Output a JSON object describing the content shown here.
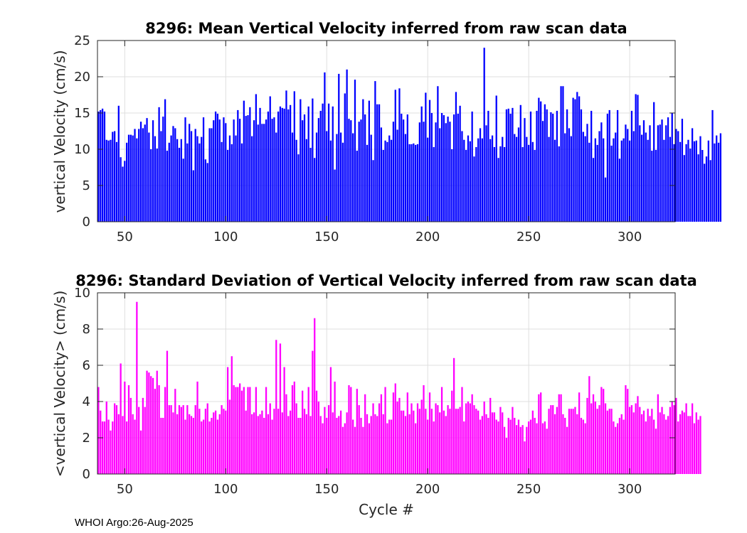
{
  "chart_data": [
    {
      "type": "bar",
      "title": "8296: Mean Vertical Velocity inferred from raw scan data",
      "xlabel": "",
      "ylabel": "vertical Velocity (cm/s)",
      "x_start": 37,
      "xlim": [
        36.5,
        322.5
      ],
      "ylim": [
        0,
        25
      ],
      "yticks": [
        0,
        5,
        10,
        15,
        20,
        25
      ],
      "xticks": [
        50,
        100,
        150,
        200,
        250,
        300
      ],
      "grid": true,
      "color": "#0000ff",
      "values": [
        15.2,
        15.4,
        15.6,
        15.2,
        11.3,
        11.2,
        11.3,
        12.4,
        12.5,
        11.0,
        16.0,
        8.9,
        7.6,
        8.4,
        10.9,
        12.0,
        12.0,
        11.9,
        12.8,
        11.5,
        12.8,
        13.8,
        12.9,
        13.4,
        14.3,
        12.3,
        10.0,
        14.0,
        11.8,
        10.1,
        15.8,
        12.5,
        14.5,
        16.9,
        9.8,
        10.9,
        11.9,
        13.2,
        12.9,
        11.4,
        10.2,
        11.4,
        8.7,
        14.4,
        10.8,
        13.5,
        12.5,
        7.1,
        12.8,
        11.8,
        10.8,
        11.7,
        14.4,
        8.6,
        8.1,
        12.9,
        12.9,
        14.0,
        15.2,
        14.9,
        14.1,
        11.0,
        14.4,
        13.6,
        9.9,
        11.9,
        10.7,
        14.1,
        11.9,
        15.4,
        14.2,
        10.8,
        16.7,
        14.6,
        14.7,
        15.8,
        11.8,
        14.0,
        17.6,
        13.4,
        15.7,
        13.5,
        13.5,
        14.1,
        15.2,
        17.3,
        14.2,
        14.4,
        12.3,
        15.2,
        15.9,
        15.7,
        15.6,
        18.1,
        15.5,
        16.1,
        12.3,
        18.0,
        11.3,
        9.3,
        16.9,
        14.0,
        14.8,
        11.4,
        15.9,
        10.2,
        17.0,
        8.8,
        12.3,
        14.3,
        15.3,
        16.3,
        20.6,
        12.5,
        16.3,
        11.2,
        15.9,
        7.2,
        12.1,
        20.4,
        12.3,
        10.9,
        17.7,
        21.0,
        14.2,
        14.0,
        12.2,
        19.6,
        9.8,
        13.8,
        14.1,
        16.9,
        14.8,
        10.6,
        16.7,
        12.0,
        8.5,
        19.4,
        16.2,
        16.2,
        13.0,
        9.9,
        11.2,
        11.0,
        11.9,
        11.3,
        13.8,
        18.2,
        12.7,
        18.4,
        14.9,
        14.1,
        12.1,
        14.8,
        10.7,
        10.7,
        10.8,
        10.6,
        10.7,
        13.7,
        15.9,
        13.8,
        17.8,
        11.6,
        16.8,
        15.0,
        10.3,
        13.7,
        18.7,
        12.9,
        15.0,
        14.7,
        13.6,
        14.5,
        13.8,
        10.0,
        14.8,
        17.9,
        14.9,
        16.0,
        12.5,
        11.3,
        9.9,
        11.9,
        11.1,
        15.2,
        9.0,
        10.3,
        11.5,
        12.9,
        11.5,
        24.0,
        13.3,
        15.3,
        11.4,
        11.9,
        10.3,
        17.4,
        8.8,
        10.4,
        11.7,
        10.3,
        15.5,
        15.6,
        14.9,
        15.7,
        12.1,
        11.7,
        13.0,
        16.1,
        10.3,
        14.3,
        11.7,
        10.6,
        15.2,
        11.0,
        9.9,
        15.3,
        17.1,
        16.6,
        13.9,
        16.2,
        15.5,
        11.7,
        15.1,
        14.9,
        11.3,
        15.3,
        10.4,
        18.7,
        18.7,
        12.2,
        15.5,
        12.9,
        11.8,
        17.1,
        16.9,
        17.9,
        17.3,
        15.5,
        12.4,
        11.8,
        13.5,
        10.9,
        15.3,
        8.8,
        11.5,
        10.6,
        12.5,
        13.7,
        11.5,
        6.1,
        14.9,
        15.4,
        10.5,
        11.5,
        12.3,
        15.4,
        8.7,
        11.2,
        11.5,
        13.4,
        12.8,
        11.2,
        15.3,
        12.5,
        17.6,
        17.5,
        13.3,
        12.0,
        14.0,
        12.3,
        11.3,
        13.3,
        9.8,
        16.5,
        9.9,
        13.3,
        13.4,
        14.1,
        11.3,
        13.3,
        14.4,
        11.7,
        15.0,
        10.7,
        12.8,
        12.5,
        11.0,
        14.2,
        9.2,
        10.7,
        11.3,
        10.1,
        12.9,
        11.1,
        11.2,
        9.3,
        11.8,
        9.9,
        8.0,
        9.0,
        11.2,
        8.5,
        15.4,
        10.8,
        11.9,
        10.9,
        12.2
      ]
    },
    {
      "type": "bar",
      "title": "8296: Standard Deviation of Vertical Velocity inferred from raw scan data",
      "xlabel": "Cycle #",
      "ylabel": "<vertical Velocity> (cm/s)",
      "x_start": 37,
      "xlim": [
        36.5,
        322.5
      ],
      "ylim": [
        0,
        10
      ],
      "yticks": [
        0,
        2,
        4,
        6,
        8,
        10
      ],
      "xticks": [
        50,
        100,
        150,
        200,
        250,
        300
      ],
      "grid": true,
      "color": "#ff00ff",
      "values": [
        4.8,
        3.5,
        2.9,
        2.9,
        4.0,
        3.0,
        2.4,
        2.9,
        3.9,
        3.8,
        3.3,
        6.1,
        3.2,
        5.1,
        2.9,
        4.9,
        4.2,
        3.3,
        3.0,
        9.5,
        3.7,
        2.4,
        4.2,
        3.7,
        5.7,
        5.6,
        5.4,
        5.3,
        4.7,
        5.7,
        4.9,
        3.1,
        3.1,
        4.8,
        6.8,
        3.8,
        3.8,
        3.4,
        4.7,
        3.3,
        3.8,
        3.7,
        3.8,
        3.0,
        3.8,
        3.3,
        3.2,
        3.1,
        3.8,
        5.1,
        3.6,
        2.9,
        3.0,
        3.6,
        3.9,
        2.9,
        3.1,
        3.4,
        3.5,
        3.0,
        3.3,
        3.8,
        3.6,
        3.5,
        5.9,
        4.1,
        6.5,
        4.9,
        4.8,
        4.8,
        5.0,
        4.6,
        4.8,
        3.5,
        4.8,
        4.8,
        3.3,
        3.4,
        4.8,
        3.2,
        3.3,
        3.5,
        3.1,
        4.8,
        3.3,
        3.9,
        3.0,
        3.6,
        7.4,
        3.6,
        7.2,
        3.4,
        5.9,
        4.4,
        3.2,
        3.5,
        4.9,
        5.1,
        3.9,
        3.1,
        3.1,
        4.6,
        3.6,
        3.3,
        4.8,
        3.2,
        6.8,
        8.6,
        4.6,
        4.0,
        3.2,
        2.8,
        3.7,
        3.1,
        3.8,
        5.9,
        3.4,
        5.1,
        3.1,
        3.2,
        3.5,
        2.6,
        2.8,
        3.4,
        4.9,
        4.8,
        3.0,
        2.6,
        4.7,
        3.8,
        3.1,
        2.6,
        4.4,
        3.3,
        2.8,
        3.2,
        3.9,
        3.3,
        3.2,
        3.9,
        4.4,
        3.3,
        4.8,
        2.8,
        3.0,
        3.0,
        4.5,
        5.0,
        4.0,
        4.2,
        3.5,
        3.5,
        3.2,
        4.5,
        3.3,
        3.9,
        3.5,
        2.8,
        3.9,
        3.6,
        4.1,
        4.9,
        3.6,
        3.0,
        4.5,
        3.6,
        2.9,
        3.9,
        3.8,
        3.4,
        4.8,
        3.5,
        3.2,
        3.8,
        3.6,
        4.6,
        6.4,
        3.6,
        3.6,
        3.7,
        4.8,
        2.9,
        3.9,
        4.0,
        3.9,
        4.4,
        3.8,
        3.6,
        3.5,
        3.0,
        3.2,
        4.0,
        3.3,
        3.1,
        4.2,
        3.4,
        3.4,
        3.0,
        2.9,
        3.7,
        3.4,
        2.6,
        2.0,
        3.1,
        3.0,
        3.7,
        3.1,
        2.7,
        3.0,
        2.6,
        2.7,
        1.8,
        2.6,
        2.9,
        3.0,
        3.5,
        3.1,
        2.8,
        4.4,
        4.5,
        2.8,
        2.9,
        2.5,
        3.6,
        3.8,
        3.8,
        3.3,
        3.7,
        4.4,
        4.4,
        3.3,
        3.1,
        2.6,
        3.6,
        3.6,
        3.6,
        3.7,
        3.3,
        4.5,
        3.1,
        3.0,
        2.8,
        4.2,
        5.4,
        3.9,
        4.4,
        4.0,
        3.6,
        3.8,
        4.8,
        4.7,
        3.9,
        3.5,
        3.6,
        3.6,
        2.9,
        2.6,
        2.8,
        3.1,
        3.3,
        3.0,
        4.9,
        4.7,
        3.7,
        3.8,
        3.4,
        3.9,
        4.3,
        3.7,
        3.3,
        3.5,
        2.9,
        3.6,
        3.2,
        3.6,
        3.0,
        2.5,
        4.4,
        3.4,
        3.7,
        3.3,
        3.0,
        3.2,
        3.7,
        4.0,
        3.8,
        4.2,
        2.9,
        3.3,
        3.5,
        3.4,
        3.9,
        3.2,
        3.2,
        3.9,
        2.8,
        3.4,
        3.0,
        3.2
      ]
    }
  ],
  "footer": "WHOI Argo:26-Aug-2025"
}
